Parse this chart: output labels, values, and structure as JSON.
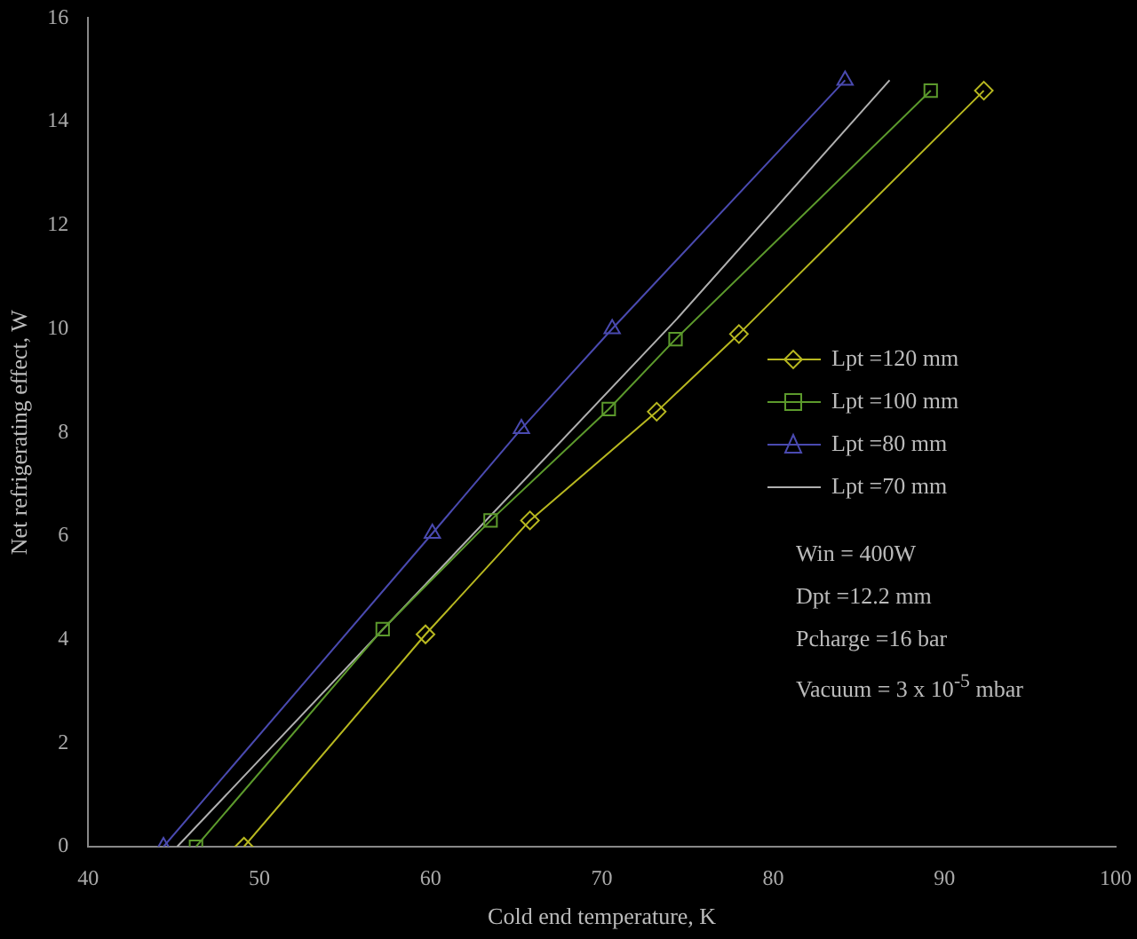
{
  "chart_data": {
    "type": "line",
    "xlabel": "Cold end temperature, K",
    "ylabel": "Net refrigerating effect, W",
    "xlim": [
      40,
      100
    ],
    "xticks": [
      40,
      50,
      60,
      70,
      80,
      90,
      100
    ],
    "ylim": [
      0,
      16
    ],
    "yticks": [
      0,
      2,
      4,
      6,
      8,
      10,
      12,
      14,
      16
    ],
    "grid": false,
    "legend": "right",
    "series": [
      {
        "name": "Lpt =120 mm",
        "color": "#b8b820",
        "marker": "diamond",
        "x": [
          49.1,
          59.7,
          65.8,
          73.2,
          78,
          92.3
        ],
        "values": [
          0,
          4.1,
          6.3,
          8.4,
          9.9,
          14.6
        ]
      },
      {
        "name": "Lpt =100 mm",
        "color": "#5c9a2c",
        "marker": "square",
        "x": [
          46.3,
          57.2,
          63.5,
          70.4,
          74.3,
          89.2
        ],
        "values": [
          0,
          4.2,
          6.3,
          8.45,
          9.8,
          14.6
        ]
      },
      {
        "name": "Lpt =80 mm",
        "color": "#4a4ab0",
        "marker": "triangle",
        "x": [
          44.4,
          60.1,
          65.3,
          70.6,
          84.2
        ],
        "values": [
          0,
          6.05,
          8.07,
          10,
          14.8
        ]
      },
      {
        "name": "Lpt =70 mm",
        "color": "#b0b0b0",
        "marker": "none",
        "x": [
          45.2,
          74.4,
          86.8
        ],
        "values": [
          0,
          10.2,
          14.8
        ]
      }
    ],
    "annotations": [
      "Win = 400W",
      "Dpt =12.2 mm",
      "Pcharge =16 bar",
      "Vacuum = 3 x 10$^{-5}$ mbar"
    ]
  }
}
